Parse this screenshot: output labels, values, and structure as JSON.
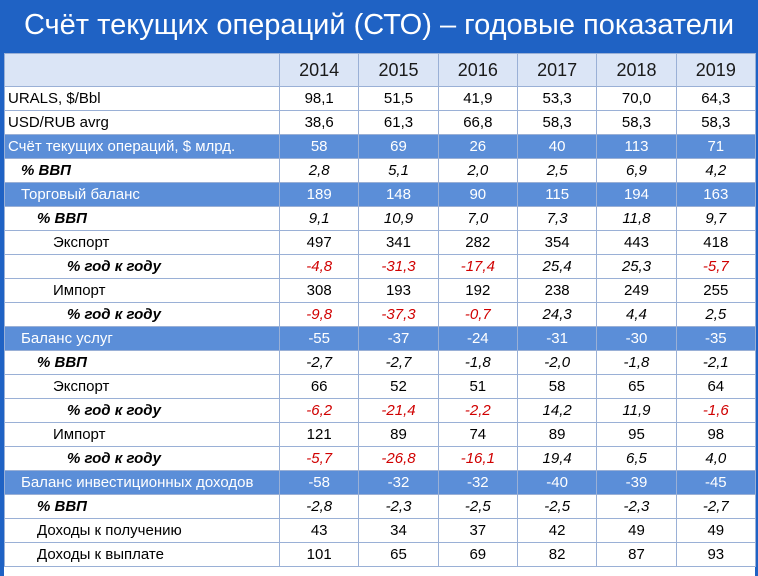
{
  "title": "Счёт текущих операций (СТО) – годовые показатели",
  "colors": {
    "header_bg": "#1f62c4",
    "section_row": "#5b8ed8",
    "negative_growth": "#d00000"
  },
  "years": [
    "2014",
    "2015",
    "2016",
    "2017",
    "2018",
    "2019"
  ],
  "rows": [
    {
      "label": "URALS, $/Bbl",
      "values": [
        "98,1",
        "51,5",
        "41,9",
        "53,3",
        "70,0",
        "64,3"
      ]
    },
    {
      "label": "USD/RUB avrg",
      "values": [
        "38,6",
        "61,3",
        "66,8",
        "58,3",
        "58,3",
        "58,3"
      ]
    },
    {
      "label": "Счёт текущих операций, $ млрд.",
      "values": [
        "58",
        "69",
        "26",
        "40",
        "113",
        "71"
      ]
    },
    {
      "label": "% ВВП",
      "values": [
        "2,8",
        "5,1",
        "2,0",
        "2,5",
        "6,9",
        "4,2"
      ]
    },
    {
      "label": "Торговый баланс",
      "values": [
        "189",
        "148",
        "90",
        "115",
        "194",
        "163"
      ]
    },
    {
      "label": "% ВВП",
      "values": [
        "9,1",
        "10,9",
        "7,0",
        "7,3",
        "11,8",
        "9,7"
      ]
    },
    {
      "label": "Экспорт",
      "values": [
        "497",
        "341",
        "282",
        "354",
        "443",
        "418"
      ]
    },
    {
      "label": "% год к году",
      "values": [
        "-4,8",
        "-31,3",
        "-17,4",
        "25,4",
        "25,3",
        "-5,7"
      ]
    },
    {
      "label": "Импорт",
      "values": [
        "308",
        "193",
        "192",
        "238",
        "249",
        "255"
      ]
    },
    {
      "label": "% год к году",
      "values": [
        "-9,8",
        "-37,3",
        "-0,7",
        "24,3",
        "4,4",
        "2,5"
      ]
    },
    {
      "label": "Баланс услуг",
      "values": [
        "-55",
        "-37",
        "-24",
        "-31",
        "-30",
        "-35"
      ]
    },
    {
      "label": "% ВВП",
      "values": [
        "-2,7",
        "-2,7",
        "-1,8",
        "-2,0",
        "-1,8",
        "-2,1"
      ]
    },
    {
      "label": "Экспорт",
      "values": [
        "66",
        "52",
        "51",
        "58",
        "65",
        "64"
      ]
    },
    {
      "label": "% год к году",
      "values": [
        "-6,2",
        "-21,4",
        "-2,2",
        "14,2",
        "11,9",
        "-1,6"
      ]
    },
    {
      "label": "Импорт",
      "values": [
        "121",
        "89",
        "74",
        "89",
        "95",
        "98"
      ]
    },
    {
      "label": "% год к году",
      "values": [
        "-5,7",
        "-26,8",
        "-16,1",
        "19,4",
        "6,5",
        "4,0"
      ]
    },
    {
      "label": "Баланс инвестиционных доходов",
      "values": [
        "-58",
        "-32",
        "-32",
        "-40",
        "-39",
        "-45"
      ]
    },
    {
      "label": "% ВВП",
      "values": [
        "-2,8",
        "-2,3",
        "-2,5",
        "-2,5",
        "-2,3",
        "-2,7"
      ]
    },
    {
      "label": "Доходы к получению",
      "values": [
        "43",
        "34",
        "37",
        "42",
        "49",
        "49"
      ]
    },
    {
      "label": "Доходы к выплате",
      "values": [
        "101",
        "65",
        "69",
        "82",
        "87",
        "93"
      ]
    }
  ]
}
